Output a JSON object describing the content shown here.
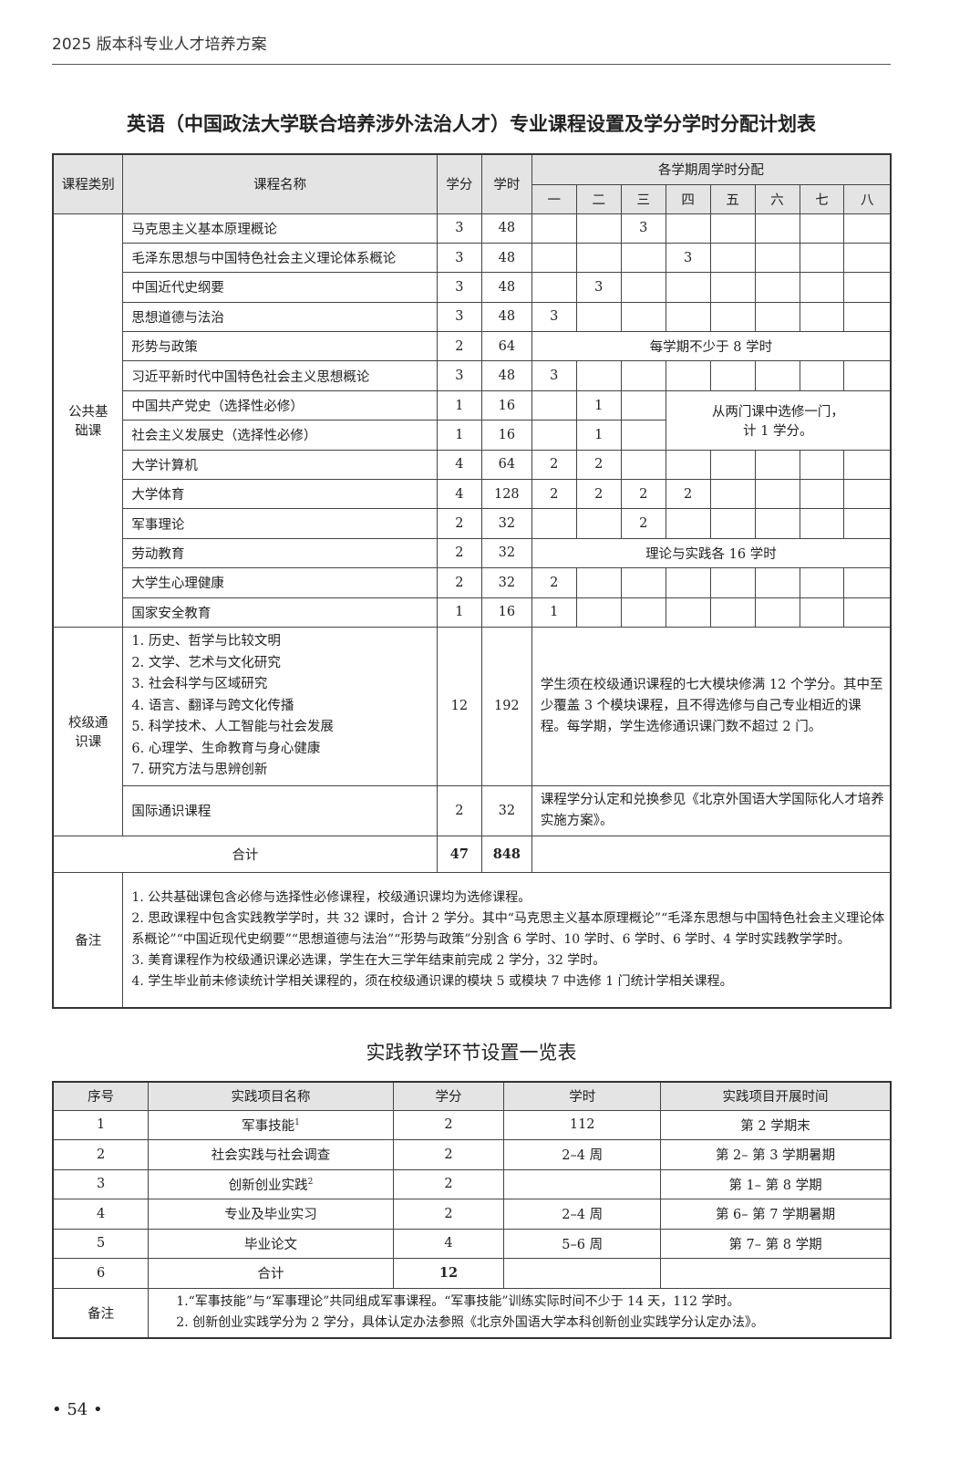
{
  "header": {
    "running_title": "2025 版本科专业人才培养方案"
  },
  "table1": {
    "title": "英语（中国政法大学联合培养涉外法治人才）专业课程设置及学分学时分配计划表",
    "headers": {
      "category": "课程类别",
      "name": "课程名称",
      "credits": "学分",
      "hours": "学时",
      "semesters_group": "各学期周学时分配",
      "semesters": [
        "一",
        "二",
        "三",
        "四",
        "五",
        "六",
        "七",
        "八"
      ]
    },
    "public_category": "公共基础课",
    "rows": [
      {
        "name": "马克思主义基本原理概论",
        "credits": "3",
        "hours": "48",
        "sem": [
          "",
          "",
          "3",
          "",
          "",
          "",
          "",
          ""
        ]
      },
      {
        "name": "毛泽东思想与中国特色社会主义理论体系概论",
        "credits": "3",
        "hours": "48",
        "sem": [
          "",
          "",
          "",
          "3",
          "",
          "",
          "",
          ""
        ]
      },
      {
        "name": "中国近代史纲要",
        "credits": "3",
        "hours": "48",
        "sem": [
          "",
          "3",
          "",
          "",
          "",
          "",
          "",
          ""
        ]
      },
      {
        "name": "思想道德与法治",
        "credits": "3",
        "hours": "48",
        "sem": [
          "3",
          "",
          "",
          "",
          "",
          "",
          "",
          ""
        ]
      },
      {
        "name": "形势与政策",
        "credits": "2",
        "hours": "64",
        "span": {
          "start": 0,
          "cols": 8,
          "rows": 1,
          "text": "每学期不少于 8 学时"
        }
      },
      {
        "name": "习近平新时代中国特色社会主义思想概论",
        "credits": "3",
        "hours": "48",
        "sem": [
          "3",
          "",
          "",
          "",
          "",
          "",
          "",
          ""
        ]
      },
      {
        "name": "中国共产党史（选择性必修）",
        "credits": "1",
        "hours": "16",
        "sem": [
          "",
          "1",
          ""
        ],
        "span": {
          "start": 3,
          "cols": 5,
          "rows": 2,
          "text": "从两门课中选修一门，\n计 1 学分。"
        }
      },
      {
        "name": "社会主义发展史（选择性必修）",
        "credits": "1",
        "hours": "16",
        "sem": [
          "",
          "1",
          ""
        ]
      },
      {
        "name": "大学计算机",
        "credits": "4",
        "hours": "64",
        "sem": [
          "2",
          "2",
          "",
          "",
          "",
          "",
          "",
          ""
        ]
      },
      {
        "name": "大学体育",
        "credits": "4",
        "hours": "128",
        "sem": [
          "2",
          "2",
          "2",
          "2",
          "",
          "",
          "",
          ""
        ]
      },
      {
        "name": "军事理论",
        "credits": "2",
        "hours": "32",
        "sem": [
          "",
          "",
          "2",
          "",
          "",
          "",
          "",
          ""
        ]
      },
      {
        "name": "劳动教育",
        "credits": "2",
        "hours": "32",
        "span": {
          "start": 0,
          "cols": 8,
          "rows": 1,
          "text": "理论与实践各 16 学时"
        }
      },
      {
        "name": "大学生心理健康",
        "credits": "2",
        "hours": "32",
        "sem": [
          "2",
          "",
          "",
          "",
          "",
          "",
          "",
          ""
        ]
      },
      {
        "name": "国家安全教育",
        "credits": "1",
        "hours": "16",
        "sem": [
          "1",
          "",
          "",
          "",
          "",
          "",
          "",
          ""
        ]
      }
    ],
    "general": {
      "category": "校级通识课",
      "modules": [
        "1. 历史、哲学与比较文明",
        "2. 文学、艺术与文化研究",
        "3. 社会科学与区域研究",
        "4. 语言、翻译与跨文化传播",
        "5. 科学技术、人工智能与社会发展",
        "6. 心理学、生命教育与身心健康",
        "7. 研究方法与思辨创新"
      ],
      "credits": "12",
      "hours": "192",
      "note": "学生须在校级通识课程的七大模块修满 12 个学分。其中至少覆盖 3 个模块课程，且不得选修与自己专业相近的课程。每学期，学生选修通识课门数不超过 2 门。",
      "intl_name": "国际通识课程",
      "intl_credits": "2",
      "intl_hours": "32",
      "intl_note": "课程学分认定和兑换参见《北京外国语大学国际化人才培养实施方案》。"
    },
    "total": {
      "label": "合计",
      "credits": "47",
      "hours": "848"
    },
    "remarks": {
      "label": "备注",
      "items": [
        "1. 公共基础课包含必修与选择性必修课程，校级通识课均为选修课程。",
        "2. 思政课程中包含实践教学学时，共 32 课时，合计 2 学分。其中“马克思主义基本原理概论”“毛泽东思想与中国特色社会主义理论体系概论”“中国近现代史纲要”“思想道德与法治”“形势与政策”分别含 6 学时、10 学时、6 学时、6 学时、4 学时实践教学学时。",
        "3. 美育课程作为校级通识课必选课，学生在大三学年结束前完成 2 学分，32 学时。",
        "4. 学生毕业前未修读统计学相关课程的，须在校级通识课的模块 5 或模块 7 中选修 1 门统计学相关课程。"
      ]
    }
  },
  "table2": {
    "title": "实践教学环节设置一览表",
    "headers": [
      "序号",
      "实践项目名称",
      "学分",
      "学时",
      "实践项目开展时间"
    ],
    "rows": [
      {
        "no": "1",
        "name": "军事技能",
        "sup": "1",
        "credits": "2",
        "hours": "112",
        "time": "第 2 学期末"
      },
      {
        "no": "2",
        "name": "社会实践与社会调查",
        "sup": "",
        "credits": "2",
        "hours": "2–4 周",
        "time": "第 2– 第 3 学期暑期"
      },
      {
        "no": "3",
        "name": "创新创业实践",
        "sup": "2",
        "credits": "2",
        "hours": "",
        "time": "第 1– 第 8 学期"
      },
      {
        "no": "4",
        "name": "专业及毕业实习",
        "sup": "",
        "credits": "2",
        "hours": "2–4 周",
        "time": "第 6– 第 7 学期暑期"
      },
      {
        "no": "5",
        "name": "毕业论文",
        "sup": "",
        "credits": "4",
        "hours": "5–6 周",
        "time": "第 7– 第 8 学期"
      },
      {
        "no": "6",
        "name": "合计",
        "sup": "",
        "credits": "12",
        "hours": "",
        "time": "",
        "bold": true
      }
    ],
    "remarks": {
      "label": "备注",
      "items": [
        "1.“军事技能”与“军事理论”共同组成军事课程。“军事技能”训练实际时间不少于 14 天，112 学时。",
        "2. 创新创业实践学分为 2 学分，具体认定办法参照《北京外国语大学本科创新创业实践学分认定办法》。"
      ]
    }
  },
  "footer": {
    "page_number": "• 54 •"
  }
}
